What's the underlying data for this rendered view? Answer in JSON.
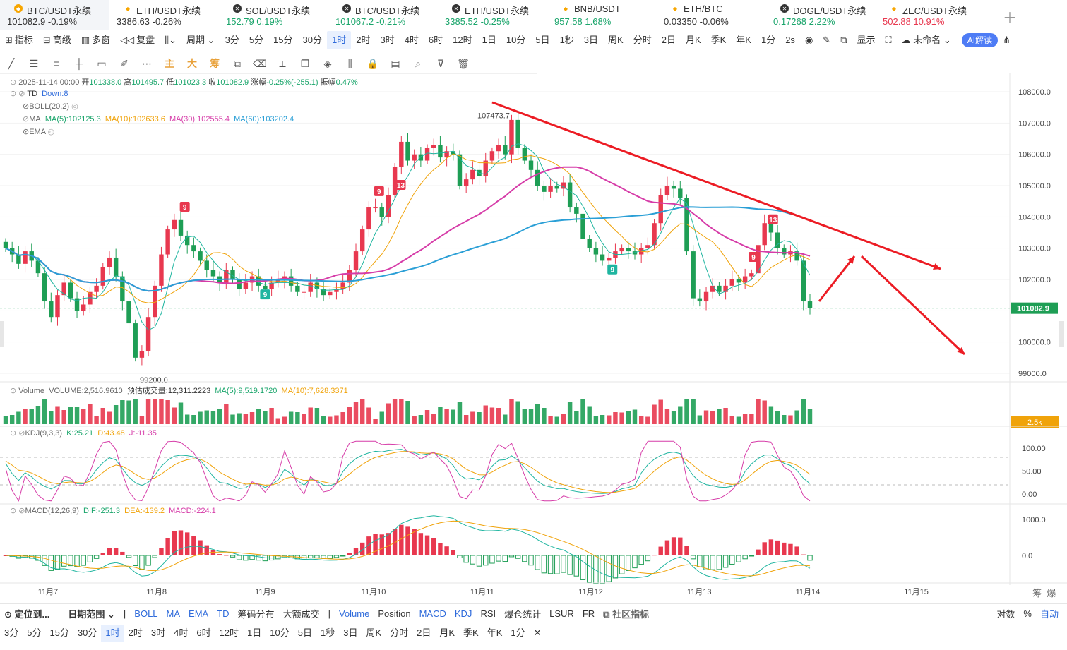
{
  "tickers": [
    {
      "name": "BTC/USDT永续",
      "price": "101082.9",
      "change": "-0.19%",
      "color": "#333",
      "icon": "btc-icon",
      "iconColor": "#f7a600",
      "active": true
    },
    {
      "name": "ETH/USDT永续",
      "price": "3386.63",
      "change": "-0.26%",
      "color": "#333",
      "icon": "diamond-icon",
      "iconColor": "#f7a600"
    },
    {
      "name": "SOL/USDT永续",
      "price": "152.79",
      "change": "0.19%",
      "color": "#1aa56b",
      "icon": "cross-circle-icon",
      "iconColor": "#333"
    },
    {
      "name": "BTC/USDT永续",
      "price": "101067.2",
      "change": "-0.21%",
      "color": "#1aa56b",
      "icon": "cross-circle-icon",
      "iconColor": "#333"
    },
    {
      "name": "ETH/USDT永续",
      "price": "3385.52",
      "change": "-0.25%",
      "color": "#1aa56b",
      "icon": "cross-circle-icon",
      "iconColor": "#333"
    },
    {
      "name": "BNB/USDT",
      "price": "957.58",
      "change": "1.68%",
      "color": "#1aa56b",
      "icon": "diamond-icon",
      "iconColor": "#f7a600"
    },
    {
      "name": "ETH/BTC",
      "price": "0.03350",
      "change": "-0.06%",
      "color": "#333",
      "icon": "diamond-icon",
      "iconColor": "#f7a600"
    },
    {
      "name": "DOGE/USDT永续",
      "price": "0.17268",
      "change": "2.22%",
      "color": "#1aa56b",
      "icon": "cross-circle-icon",
      "iconColor": "#333"
    },
    {
      "name": "ZEC/USDT永续",
      "price": "502.88",
      "change": "10.91%",
      "color": "#e8384f",
      "icon": "diamond-icon",
      "iconColor": "#f7a600"
    }
  ],
  "toolbar": {
    "left": [
      "指标",
      "高级",
      "多窗",
      "复盘"
    ],
    "period": "周期",
    "intervals": [
      "3分",
      "5分",
      "15分",
      "30分",
      "1时",
      "2时",
      "3时",
      "4时",
      "6时",
      "12时",
      "1日",
      "10分",
      "5日",
      "1秒",
      "3日",
      "周K",
      "分时",
      "2日",
      "月K",
      "季K",
      "年K",
      "1分"
    ],
    "selected": "1时",
    "refresh": "2s",
    "display": "显示",
    "unnamed": "未命名",
    "ai": "AI解读"
  },
  "drawtools": [
    "主",
    "大",
    "筹"
  ],
  "info": {
    "date": "2025-11-14 00:00",
    "open_l": "开",
    "open": "101338.0",
    "high_l": "高",
    "high": "101495.7",
    "low_l": "低",
    "low": "101023.3",
    "close_l": "收",
    "close": "101082.9",
    "chg_l": "涨幅",
    "chg": "-0.25%(-255.1)",
    "amp_l": "振幅",
    "amp": "0.47%"
  },
  "legend": {
    "td": "TD",
    "td_val": "Down:8",
    "boll": "BOLL(20,2)",
    "ma": "MA",
    "ma5": "MA(5):102125.3",
    "ma10": "MA(10):102633.6",
    "ma30": "MA(30):102555.4",
    "ma60": "MA(60):103202.4",
    "ema": "EMA",
    "vol": "Volume",
    "vol_val": "VOLUME:2,516.9610",
    "vol_est": "预估成交量:12,311.2223",
    "vol_ma5": "MA(5):9,519.1720",
    "vol_ma10": "MA(10):7,628.3371",
    "kdj": "KDJ(9,3,3)",
    "k": "K:25.21",
    "d": "D:43.48",
    "j": "J:-11.35",
    "macd": "MACD(12,26,9)",
    "dif": "DIF:-251.3",
    "dea": "DEA:-139.2",
    "macd_val": "MACD:-224.1"
  },
  "chart_data": {
    "type": "candlestick",
    "price_axis": {
      "ticks": [
        "108000.0",
        "107000.0",
        "106000.0",
        "105000.0",
        "104000.0",
        "103000.0",
        "102000.0",
        "101000.0",
        "100000.0",
        "99000.0"
      ],
      "range": [
        98700,
        108300
      ]
    },
    "current_price": "101082.9",
    "vol_axis_label": "2.5k",
    "kdj_ticks": [
      "100.00",
      "50.00",
      "0.00"
    ],
    "macd_ticks": [
      "1000.0",
      "0.0"
    ],
    "x_ticks": [
      "11月7",
      "11月8",
      "11月9",
      "11月10",
      "11月11",
      "11月12",
      "11月13",
      "11月14",
      "11月15"
    ],
    "annotations": {
      "high": "107473.7",
      "low": "99200.0"
    },
    "td_labels": [
      {
        "text": "9",
        "type": "sell",
        "x_day": 1.26,
        "price": 104300
      },
      {
        "text": "9",
        "type": "buy",
        "x_day": 2.0,
        "price": 101500
      },
      {
        "text": "9",
        "type": "sell",
        "x_day": 3.05,
        "price": 104800
      },
      {
        "text": "13",
        "type": "sell",
        "x_day": 3.25,
        "price": 105000
      },
      {
        "text": "9",
        "type": "buy",
        "x_day": 5.2,
        "price": 102300
      },
      {
        "text": "9",
        "type": "sell",
        "x_day": 6.5,
        "price": 102700
      },
      {
        "text": "13",
        "type": "sell",
        "x_day": 6.68,
        "price": 103900
      }
    ],
    "closes": [
      103000,
      102800,
      102500,
      102900,
      102600,
      102200,
      101300,
      100800,
      101500,
      101900,
      101400,
      101000,
      101200,
      101600,
      101800,
      102400,
      102700,
      102100,
      101300,
      100600,
      99500,
      99700,
      100800,
      101800,
      102800,
      103600,
      103900,
      103400,
      103100,
      102900,
      102600,
      102300,
      102100,
      101900,
      102300,
      102000,
      101700,
      101900,
      102100,
      101800,
      101700,
      101900,
      102000,
      102100,
      101800,
      101600,
      101600,
      101900,
      101700,
      101500,
      101600,
      101700,
      101900,
      102300,
      102900,
      103600,
      104300,
      104300,
      104000,
      104700,
      105600,
      106400,
      105800,
      106000,
      105800,
      106200,
      106300,
      105900,
      106100,
      106000,
      105000,
      105200,
      105500,
      105300,
      105800,
      106100,
      106300,
      106000,
      107100,
      106200,
      105800,
      105500,
      105000,
      104800,
      105000,
      104900,
      105100,
      104300,
      104100,
      103300,
      103000,
      102800,
      102600,
      102700,
      102900,
      103000,
      102900,
      102800,
      103000,
      103100,
      103800,
      104700,
      105000,
      104900,
      104600,
      102900,
      101400,
      101300,
      101600,
      101800,
      101600,
      101800,
      102000,
      101900,
      102100,
      102200,
      103100,
      103800,
      103500,
      103000,
      102800,
      102900,
      102600,
      101300,
      101080
    ]
  },
  "indicators_bar": {
    "locate": "定位到...",
    "date_range": "日期范围",
    "main": [
      "BOLL",
      "MA",
      "EMA",
      "TD",
      "筹码分布",
      "大额成交"
    ],
    "sub": [
      "Volume",
      "Position",
      "MACD",
      "KDJ",
      "RSI",
      "爆仓统计",
      "LSUR",
      "FR"
    ],
    "community": "社区指标",
    "right": [
      "对数",
      "%",
      "自动"
    ]
  },
  "periods_bar": [
    "3分",
    "5分",
    "15分",
    "30分",
    "1时",
    "2时",
    "3时",
    "4时",
    "6时",
    "12时",
    "1日",
    "10分",
    "5日",
    "1秒",
    "3日",
    "周K",
    "分时",
    "2日",
    "月K",
    "季K",
    "年K",
    "1分"
  ],
  "periods_selected": "1时",
  "corner": [
    "筹",
    "爆"
  ]
}
